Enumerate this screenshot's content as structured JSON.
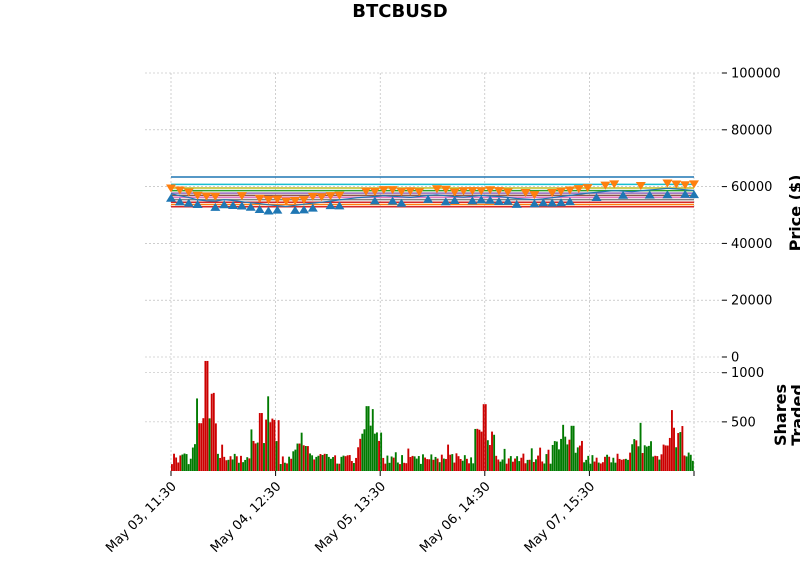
{
  "chart_data": {
    "type": "candlestick",
    "title": "BTCBUSD",
    "price_panel": {
      "ylabel": "Price ($)",
      "ylim": [
        0,
        100000
      ],
      "yticks": [
        "0",
        "20000",
        "40000",
        "60000",
        "80000",
        "100000"
      ],
      "grid": true,
      "horizontal_levels": [
        {
          "value": 63400,
          "color": "#1f77b4"
        },
        {
          "value": 60800,
          "color": "#17becf"
        },
        {
          "value": 59500,
          "color": "#bcbd22"
        },
        {
          "value": 58600,
          "color": "#2ca02c"
        },
        {
          "value": 57700,
          "color": "#9467bd"
        },
        {
          "value": 56900,
          "color": "#8c564b"
        },
        {
          "value": 56200,
          "color": "#e377c2"
        },
        {
          "value": 55400,
          "color": "#7f7f7f"
        },
        {
          "value": 54500,
          "color": "#d62728"
        },
        {
          "value": 53700,
          "color": "#ff7f0e"
        },
        {
          "value": 52900,
          "color": "#d62728"
        }
      ],
      "close_line_color": "#1f77b4",
      "close_approx": [
        57500,
        56800,
        56200,
        55300,
        55000,
        54900,
        55400,
        55100,
        54700,
        54300,
        54000,
        53600,
        53300,
        53000,
        53400,
        53800,
        54200,
        54500,
        54900,
        55300,
        55700,
        56100,
        56300,
        56500,
        56800,
        56600,
        56400,
        56200,
        56500,
        56900,
        57100,
        56800,
        56500,
        56300,
        56600,
        56900,
        56700,
        56500,
        56200,
        55800,
        55600,
        55400,
        55700,
        56100,
        56500,
        56900,
        57300,
        57700,
        58000,
        58300,
        58600,
        58400,
        58200,
        58500,
        58800,
        59100,
        59400,
        59200,
        58900,
        58600
      ],
      "markers": {
        "sell": {
          "symbol": "triangle-down",
          "color": "#ff7f0e"
        },
        "buy": {
          "symbol": "triangle-up",
          "color": "#1f77b4"
        }
      }
    },
    "volume_panel": {
      "ylabel": "Shares Traded",
      "yticks": [
        "500",
        "1000"
      ],
      "ylim": [
        0,
        1150
      ],
      "up_color": "#007a00",
      "down_color": "#cc0000",
      "peaks": [
        {
          "at": 0.067,
          "value": 1120,
          "dir": "down"
        },
        {
          "at": 0.06,
          "value": 400,
          "dir": "down"
        },
        {
          "at": 0.17,
          "value": 590,
          "dir": "down"
        },
        {
          "at": 0.185,
          "value": 760,
          "dir": "up"
        },
        {
          "at": 0.25,
          "value": 390,
          "dir": "up"
        },
        {
          "at": 0.375,
          "value": 660,
          "dir": "up"
        },
        {
          "at": 0.385,
          "value": 630,
          "dir": "up"
        },
        {
          "at": 0.6,
          "value": 680,
          "dir": "down"
        },
        {
          "at": 0.6,
          "value": 560,
          "dir": "down"
        },
        {
          "at": 0.75,
          "value": 470,
          "dir": "up"
        },
        {
          "at": 0.77,
          "value": 460,
          "dir": "up"
        },
        {
          "at": 0.9,
          "value": 490,
          "dir": "up"
        },
        {
          "at": 0.96,
          "value": 620,
          "dir": "down"
        }
      ]
    },
    "x_ticks": [
      "May 03, 11:30",
      "May 04, 12:30",
      "May 05, 13:30",
      "May 06, 14:30",
      "May 07, 15:30"
    ]
  }
}
